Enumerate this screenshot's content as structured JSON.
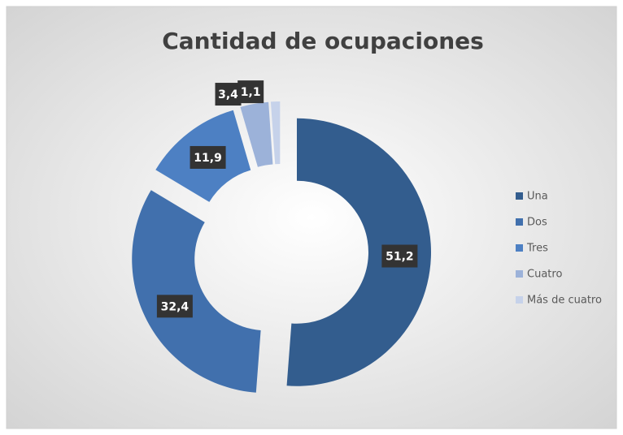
{
  "chart_data": {
    "type": "donut",
    "title": "Cantidad de ocupaciones",
    "categories": [
      "Una",
      "Dos",
      "Tres",
      "Cuatro",
      "Más de cuatro"
    ],
    "values": [
      51.2,
      32.4,
      11.9,
      3.4,
      1.1
    ],
    "value_labels": [
      "51,2",
      "32,4",
      "11,9",
      "3,4",
      "1,1"
    ],
    "colors": [
      "#335d8e",
      "#4170ad",
      "#4d80c3",
      "#9cb2d9",
      "#c6d2ea"
    ],
    "legend": "right"
  }
}
